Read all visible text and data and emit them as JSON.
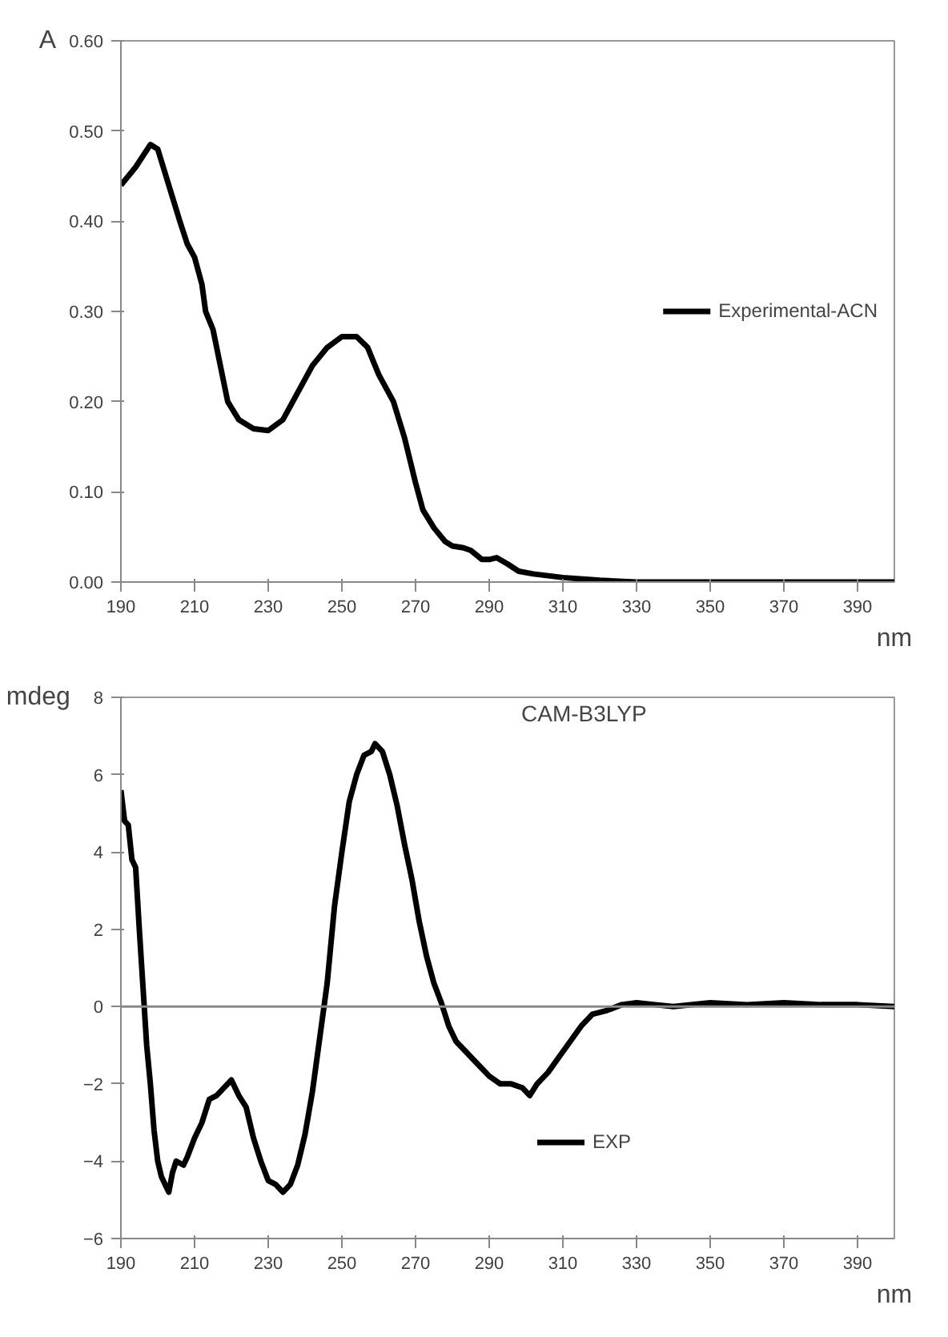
{
  "chart_data": [
    {
      "type": "line",
      "xlabel": "nm",
      "ylabel": "A",
      "xlim": [
        190,
        400
      ],
      "xticks": [
        190,
        210,
        230,
        250,
        270,
        290,
        310,
        330,
        350,
        370,
        390
      ],
      "ylim": [
        0,
        0.6
      ],
      "yticks": [
        {
          "value": 0,
          "label": "0.00"
        },
        {
          "value": 0.1,
          "label": "0.10"
        },
        {
          "value": 0.2,
          "label": "0.20"
        },
        {
          "value": 0.3,
          "label": "0.30"
        },
        {
          "value": 0.4,
          "label": "0.40"
        },
        {
          "value": 0.5,
          "label": "0.50"
        },
        {
          "value": 0.6,
          "label": "0.60"
        }
      ],
      "grid": false,
      "legend": "right",
      "line_style": "solid",
      "marker": "none",
      "series": [
        {
          "name": "Experimental-ACN",
          "color": "#000000",
          "x": [
            190,
            194,
            198,
            200,
            203,
            206,
            208,
            210,
            212,
            213,
            215,
            217,
            219,
            222,
            226,
            230,
            234,
            238,
            242,
            246,
            250,
            254,
            257,
            260,
            264,
            267,
            270,
            272,
            275,
            278,
            280,
            283,
            285,
            288,
            290,
            292,
            295,
            298,
            302,
            310,
            320,
            330,
            400
          ],
          "values": [
            0.44,
            0.46,
            0.485,
            0.48,
            0.44,
            0.4,
            0.375,
            0.36,
            0.33,
            0.3,
            0.28,
            0.24,
            0.2,
            0.18,
            0.17,
            0.168,
            0.18,
            0.21,
            0.24,
            0.26,
            0.272,
            0.272,
            0.26,
            0.23,
            0.2,
            0.16,
            0.11,
            0.08,
            0.06,
            0.045,
            0.04,
            0.038,
            0.035,
            0.025,
            0.025,
            0.027,
            0.02,
            0.012,
            0.009,
            0.005,
            0.002,
            0.0,
            0.0
          ]
        }
      ]
    },
    {
      "type": "line",
      "xlabel": "nm",
      "ylabel": "mdeg",
      "annotations": [
        "CAM-B3LYP"
      ],
      "ref_lines": [
        {
          "axis": "y",
          "value": 0,
          "color": "#888888"
        }
      ],
      "xlim": [
        190,
        400
      ],
      "xticks": [
        190,
        210,
        230,
        250,
        270,
        290,
        310,
        330,
        350,
        370,
        390
      ],
      "ylim": [
        -6,
        8
      ],
      "yticks": [
        -6,
        -4,
        -2,
        0,
        2,
        4,
        6,
        8
      ],
      "grid": false,
      "legend": "bottom",
      "line_style": "solid",
      "marker": "none",
      "series": [
        {
          "name": "EXP",
          "color": "#000000",
          "x": [
            190,
            191,
            192,
            193,
            194,
            195,
            196,
            197,
            198,
            199,
            200,
            201,
            202,
            203,
            204,
            205,
            207,
            208,
            210,
            212,
            214,
            216,
            218,
            220,
            222,
            224,
            226,
            228,
            230,
            232,
            234,
            236,
            238,
            240,
            242,
            244,
            246,
            248,
            250,
            252,
            254,
            256,
            258,
            259,
            261,
            263,
            265,
            267,
            269,
            271,
            273,
            275,
            277,
            279,
            281,
            284,
            287,
            290,
            293,
            296,
            299,
            301,
            303,
            306,
            309,
            312,
            315,
            318,
            322,
            326,
            330,
            335,
            340,
            350,
            360,
            370,
            380,
            390,
            400
          ],
          "values": [
            5.6,
            4.8,
            4.7,
            3.8,
            3.6,
            2.0,
            0.5,
            -1.0,
            -2.0,
            -3.2,
            -4.0,
            -4.4,
            -4.6,
            -4.8,
            -4.3,
            -4.0,
            -4.1,
            -3.9,
            -3.4,
            -3.0,
            -2.4,
            -2.3,
            -2.1,
            -1.9,
            -2.3,
            -2.6,
            -3.4,
            -4.0,
            -4.5,
            -4.6,
            -4.8,
            -4.6,
            -4.1,
            -3.3,
            -2.2,
            -0.8,
            0.6,
            2.6,
            4.0,
            5.3,
            6.0,
            6.5,
            6.6,
            6.8,
            6.6,
            6.0,
            5.2,
            4.2,
            3.3,
            2.2,
            1.3,
            0.6,
            0.1,
            -0.5,
            -0.9,
            -1.2,
            -1.5,
            -1.8,
            -2.0,
            -2.0,
            -2.1,
            -2.3,
            -2.0,
            -1.7,
            -1.3,
            -0.9,
            -0.5,
            -0.2,
            -0.1,
            0.05,
            0.1,
            0.05,
            0.0,
            0.1,
            0.05,
            0.1,
            0.05,
            0.05,
            0.0
          ]
        }
      ]
    }
  ]
}
